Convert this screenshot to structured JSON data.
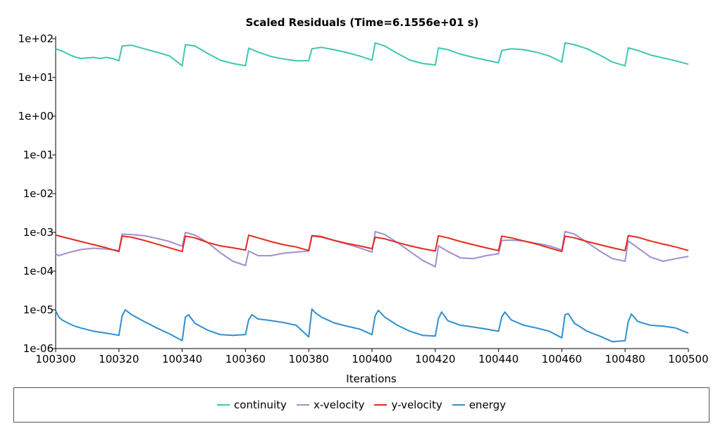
{
  "chart_data": {
    "type": "line",
    "title": "Scaled Residuals (Time=6.1556e+01 s)",
    "xlabel": "Iterations",
    "ylabel": "",
    "xlim": [
      100300,
      100500
    ],
    "ylim": [
      1e-06,
      100
    ],
    "yscale": "log",
    "x_ticks": [
      100300,
      100320,
      100340,
      100360,
      100380,
      100400,
      100420,
      100440,
      100460,
      100480,
      100500
    ],
    "y_tick_labels": [
      "1e+02",
      "1e+01",
      "1e+00",
      "1e-01",
      "1e-02",
      "1e-03",
      "1e-04",
      "1e-05",
      "1e-06"
    ],
    "legend_position": "bottom",
    "series": [
      {
        "name": "continuity",
        "color": "#3fc6b0",
        "x": [
          100300,
          100302,
          100304,
          100306,
          100308,
          100310,
          100312,
          100314,
          100316,
          100318,
          100320,
          100321,
          100324,
          100328,
          100332,
          100336,
          100340,
          100341,
          100344,
          100348,
          100352,
          100356,
          100360,
          100361,
          100364,
          100368,
          100372,
          100376,
          100380,
          100381,
          100384,
          100388,
          100392,
          100396,
          100400,
          100401,
          100404,
          100408,
          100412,
          100416,
          100420,
          100421,
          100424,
          100428,
          100432,
          100436,
          100440,
          100441,
          100444,
          100448,
          100452,
          100456,
          100460,
          100461,
          100464,
          100468,
          100472,
          100476,
          100480,
          100481,
          100484,
          100488,
          100492,
          100496,
          100500
        ],
        "values": [
          55,
          48,
          40,
          34,
          31,
          32,
          33,
          31,
          33,
          31,
          27,
          65,
          68,
          55,
          45,
          36,
          20,
          70,
          65,
          42,
          28,
          23,
          20,
          57,
          45,
          35,
          30,
          27,
          27,
          55,
          60,
          52,
          44,
          36,
          28,
          78,
          65,
          42,
          28,
          23,
          21,
          58,
          52,
          40,
          33,
          28,
          24,
          50,
          55,
          52,
          45,
          36,
          25,
          78,
          70,
          55,
          38,
          25,
          20,
          58,
          50,
          38,
          32,
          27,
          22
        ]
      },
      {
        "name": "x-velocity",
        "color": "#a08fd0",
        "x": [
          100300,
          100301,
          100304,
          100308,
          100312,
          100316,
          100320,
          100321,
          100324,
          100328,
          100332,
          100336,
          100340,
          100341,
          100344,
          100348,
          100352,
          100356,
          100360,
          100361,
          100364,
          100368,
          100372,
          100376,
          100380,
          100381,
          100384,
          100388,
          100392,
          100396,
          100400,
          100401,
          100404,
          100408,
          100412,
          100416,
          100420,
          100421,
          100424,
          100428,
          100432,
          100436,
          100440,
          100441,
          100444,
          100448,
          100452,
          100456,
          100460,
          100461,
          100464,
          100468,
          100472,
          100476,
          100480,
          100481,
          100484,
          100488,
          100492,
          100496,
          100500
        ],
        "values": [
          0.00028,
          0.00025,
          0.0003,
          0.00036,
          0.00039,
          0.00037,
          0.00034,
          0.0009,
          0.00088,
          0.00082,
          0.0007,
          0.00058,
          0.00044,
          0.001,
          0.00085,
          0.00055,
          0.0003,
          0.00018,
          0.00014,
          0.00033,
          0.00025,
          0.00025,
          0.00029,
          0.00031,
          0.00033,
          0.0008,
          0.00075,
          0.00062,
          0.0005,
          0.0004,
          0.00031,
          0.00105,
          0.00088,
          0.00055,
          0.00032,
          0.00019,
          0.00013,
          0.00045,
          0.00032,
          0.00022,
          0.00021,
          0.00025,
          0.00028,
          0.00062,
          0.00063,
          0.0006,
          0.00052,
          0.00045,
          0.00035,
          0.00105,
          0.0009,
          0.00055,
          0.00033,
          0.00021,
          0.00018,
          0.0006,
          0.0004,
          0.00023,
          0.00018,
          0.00021,
          0.00024
        ]
      },
      {
        "name": "y-velocity",
        "color": "#e42a1d",
        "x": [
          100300,
          100304,
          100308,
          100312,
          100316,
          100320,
          100321,
          100324,
          100328,
          100332,
          100336,
          100340,
          100341,
          100344,
          100348,
          100352,
          100356,
          100360,
          100361,
          100364,
          100368,
          100372,
          100376,
          100380,
          100381,
          100384,
          100388,
          100392,
          100396,
          100400,
          100401,
          100404,
          100408,
          100412,
          100416,
          100420,
          100421,
          100424,
          100428,
          100432,
          100436,
          100440,
          100441,
          100444,
          100448,
          100452,
          100456,
          100460,
          100461,
          100464,
          100468,
          100472,
          100476,
          100480,
          100481,
          100484,
          100488,
          100492,
          100496,
          100500
        ],
        "values": [
          0.00085,
          0.0007,
          0.00058,
          0.00048,
          0.0004,
          0.00032,
          0.0008,
          0.00075,
          0.00062,
          0.0005,
          0.0004,
          0.00032,
          0.0008,
          0.00072,
          0.00055,
          0.00045,
          0.0004,
          0.00035,
          0.00085,
          0.00072,
          0.00058,
          0.00048,
          0.00042,
          0.00034,
          0.00083,
          0.00078,
          0.00062,
          0.00052,
          0.00045,
          0.00038,
          0.00075,
          0.00068,
          0.00055,
          0.00045,
          0.00038,
          0.00033,
          0.00082,
          0.00072,
          0.00058,
          0.00048,
          0.0004,
          0.00034,
          0.0008,
          0.00072,
          0.0006,
          0.0005,
          0.0004,
          0.00032,
          0.0008,
          0.00072,
          0.00058,
          0.00048,
          0.0004,
          0.00034,
          0.00083,
          0.00075,
          0.0006,
          0.0005,
          0.00042,
          0.00034
        ]
      },
      {
        "name": "energy",
        "color": "#2f8fcf",
        "x": [
          100300,
          100301,
          100302,
          100304,
          100306,
          100308,
          100312,
          100316,
          100320,
          100321,
          100322,
          100324,
          100328,
          100332,
          100336,
          100340,
          100341,
          100342,
          100344,
          100348,
          100352,
          100356,
          100360,
          100361,
          100362,
          100364,
          100368,
          100372,
          100376,
          100380,
          100381,
          100382,
          100384,
          100388,
          100392,
          100396,
          100400,
          100401,
          100402,
          100404,
          100408,
          100412,
          100416,
          100420,
          100421,
          100422,
          100424,
          100428,
          100432,
          100436,
          100440,
          100441,
          100442,
          100444,
          100448,
          100452,
          100456,
          100460,
          100461,
          100462,
          100464,
          100468,
          100472,
          100476,
          100480,
          100481,
          100482,
          100484,
          100488,
          100492,
          100496,
          100500
        ],
        "values": [
          9.5e-06,
          6.5e-06,
          5.5e-06,
          4.5e-06,
          3.8e-06,
          3.4e-06,
          2.8e-06,
          2.5e-06,
          2.2e-06,
          7e-06,
          1e-05,
          7.5e-06,
          5e-06,
          3.4e-06,
          2.4e-06,
          1.6e-06,
          6.5e-06,
          7.5e-06,
          4.5e-06,
          3e-06,
          2.3e-06,
          2.2e-06,
          2.3e-06,
          5.5e-06,
          7.5e-06,
          5.8e-06,
          5.3e-06,
          4.7e-06,
          4e-06,
          2e-06,
          1.05e-05,
          8.5e-06,
          6.5e-06,
          4.6e-06,
          3.8e-06,
          3.2e-06,
          2.3e-06,
          7e-06,
          9.7e-06,
          6.5e-06,
          4e-06,
          2.8e-06,
          2.2e-06,
          2.1e-06,
          6e-06,
          8.8e-06,
          5.2e-06,
          4e-06,
          3.6e-06,
          3.2e-06,
          2.8e-06,
          6.5e-06,
          8.8e-06,
          5.5e-06,
          4e-06,
          3.4e-06,
          2.8e-06,
          1.9e-06,
          7.5e-06,
          8e-06,
          4.5e-06,
          2.8e-06,
          2.1e-06,
          1.5e-06,
          1.6e-06,
          5e-06,
          7.8e-06,
          5e-06,
          4e-06,
          3.8e-06,
          3.4e-06,
          2.5e-06
        ]
      }
    ]
  }
}
